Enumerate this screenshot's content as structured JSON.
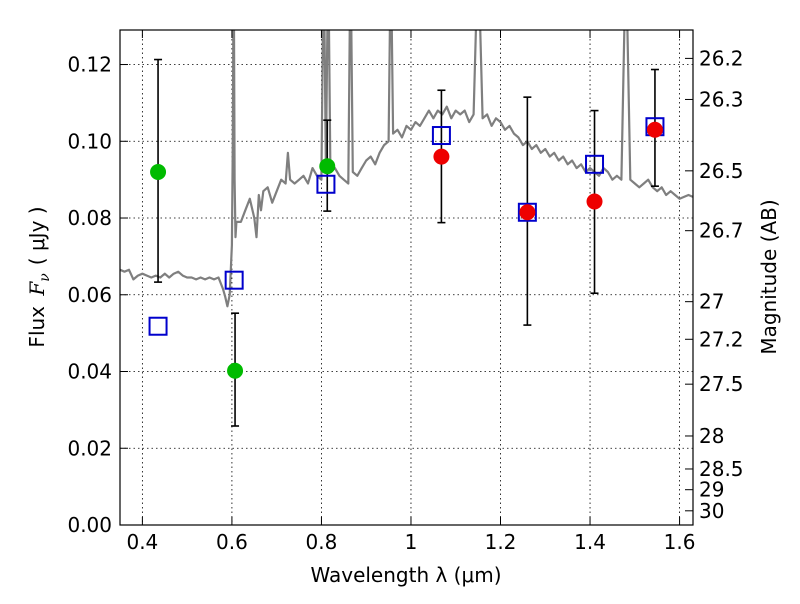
{
  "chart_data": {
    "type": "scatter",
    "xlabel": "Wavelength  λ (μm)",
    "ylabel": {
      "prefix": "Flux ",
      "symbol": "F",
      "subscript": "ν",
      "units": "( μJy )"
    },
    "y2label": "Magnitude (AB)",
    "xlim": [
      0.35,
      1.63
    ],
    "ylim": [
      0.0,
      0.129
    ],
    "x_ticks": [
      0.4,
      0.6,
      0.8,
      1.0,
      1.2,
      1.4,
      1.6
    ],
    "x_tick_labels": [
      "0.4",
      "0.6",
      "0.8",
      "1",
      "1.2",
      "1.4",
      "1.6"
    ],
    "y_ticks": [
      0.0,
      0.02,
      0.04,
      0.06,
      0.08,
      0.1,
      0.12
    ],
    "y_tick_labels": [
      "0.00",
      "0.02",
      "0.04",
      "0.06",
      "0.08",
      "0.10",
      "0.12"
    ],
    "y2_ticks": [
      {
        "label": "26.2",
        "flux": 0.1216
      },
      {
        "label": "26.3",
        "flux": 0.1109
      },
      {
        "label": "26.5",
        "flux": 0.0923
      },
      {
        "label": "26.7",
        "flux": 0.0767
      },
      {
        "label": "27",
        "flux": 0.0582
      },
      {
        "label": "27.2",
        "flux": 0.0484
      },
      {
        "label": "27.5",
        "flux": 0.0367
      },
      {
        "label": "28",
        "flux": 0.0232
      },
      {
        "label": "28.5",
        "flux": 0.0146
      },
      {
        "label": "29",
        "flux": 0.0092
      },
      {
        "label": "30",
        "flux": 0.0037
      }
    ],
    "grid": true,
    "grid_style": "dotted",
    "colors": {
      "model": "#7f7f7f",
      "green": "#00bb00",
      "red": "#ee0000",
      "blue": "#0000cc",
      "error": "#000000"
    },
    "model_spectrum": {
      "x": [
        0.35,
        0.36,
        0.37,
        0.38,
        0.39,
        0.4,
        0.41,
        0.42,
        0.43,
        0.44,
        0.45,
        0.46,
        0.47,
        0.48,
        0.49,
        0.5,
        0.51,
        0.52,
        0.53,
        0.54,
        0.55,
        0.56,
        0.57,
        0.58,
        0.585,
        0.59,
        0.595,
        0.6,
        0.602,
        0.604,
        0.606,
        0.608,
        0.61,
        0.62,
        0.63,
        0.64,
        0.65,
        0.655,
        0.66,
        0.665,
        0.67,
        0.68,
        0.69,
        0.7,
        0.71,
        0.72,
        0.725,
        0.73,
        0.74,
        0.75,
        0.76,
        0.77,
        0.78,
        0.79,
        0.8,
        0.805,
        0.81,
        0.815,
        0.82,
        0.83,
        0.84,
        0.85,
        0.86,
        0.865,
        0.87,
        0.88,
        0.89,
        0.9,
        0.91,
        0.92,
        0.93,
        0.94,
        0.95,
        0.955,
        0.96,
        0.97,
        0.98,
        0.99,
        1.0,
        1.01,
        1.02,
        1.03,
        1.04,
        1.05,
        1.06,
        1.07,
        1.08,
        1.09,
        1.1,
        1.11,
        1.12,
        1.13,
        1.14,
        1.15,
        1.16,
        1.17,
        1.18,
        1.19,
        1.2,
        1.21,
        1.22,
        1.23,
        1.24,
        1.25,
        1.26,
        1.27,
        1.28,
        1.29,
        1.3,
        1.31,
        1.32,
        1.33,
        1.34,
        1.35,
        1.36,
        1.37,
        1.38,
        1.39,
        1.4,
        1.41,
        1.42,
        1.43,
        1.44,
        1.45,
        1.46,
        1.47,
        1.48,
        1.49,
        1.5,
        1.51,
        1.52,
        1.53,
        1.54,
        1.55,
        1.56,
        1.57,
        1.58,
        1.59,
        1.6,
        1.61,
        1.62,
        1.63
      ],
      "y": [
        0.0665,
        0.066,
        0.0665,
        0.064,
        0.065,
        0.0655,
        0.065,
        0.0645,
        0.065,
        0.0645,
        0.0655,
        0.0645,
        0.0655,
        0.066,
        0.065,
        0.0645,
        0.0645,
        0.064,
        0.0645,
        0.064,
        0.0645,
        0.064,
        0.0645,
        0.0615,
        0.0595,
        0.057,
        0.06,
        0.073,
        0.1,
        0.15,
        0.09,
        0.075,
        0.079,
        0.079,
        0.082,
        0.085,
        0.08,
        0.075,
        0.086,
        0.082,
        0.087,
        0.088,
        0.084,
        0.087,
        0.09,
        0.089,
        0.097,
        0.09,
        0.089,
        0.09,
        0.091,
        0.089,
        0.093,
        0.091,
        0.09,
        0.15,
        0.093,
        0.15,
        0.092,
        0.093,
        0.091,
        0.09,
        0.089,
        0.15,
        0.092,
        0.091,
        0.093,
        0.095,
        0.096,
        0.094,
        0.097,
        0.099,
        0.1,
        0.15,
        0.102,
        0.103,
        0.101,
        0.104,
        0.103,
        0.105,
        0.104,
        0.106,
        0.108,
        0.106,
        0.108,
        0.107,
        0.109,
        0.106,
        0.108,
        0.107,
        0.108,
        0.105,
        0.107,
        0.15,
        0.106,
        0.107,
        0.104,
        0.106,
        0.105,
        0.103,
        0.104,
        0.102,
        0.101,
        0.099,
        0.1,
        0.098,
        0.099,
        0.097,
        0.098,
        0.096,
        0.097,
        0.095,
        0.096,
        0.094,
        0.095,
        0.093,
        0.094,
        0.092,
        0.093,
        0.092,
        0.091,
        0.093,
        0.092,
        0.09,
        0.091,
        0.09,
        0.15,
        0.09,
        0.089,
        0.088,
        0.089,
        0.09,
        0.088,
        0.087,
        0.088,
        0.086,
        0.087,
        0.086,
        0.085,
        0.0855,
        0.086,
        0.0855
      ]
    },
    "green_points": [
      {
        "x": 0.435,
        "y": 0.092
      },
      {
        "x": 0.607,
        "y": 0.0402
      },
      {
        "x": 0.813,
        "y": 0.0935
      }
    ],
    "red_points": [
      {
        "x": 1.068,
        "y": 0.096
      },
      {
        "x": 1.26,
        "y": 0.0815
      },
      {
        "x": 1.41,
        "y": 0.0843
      },
      {
        "x": 1.545,
        "y": 0.103
      }
    ],
    "blue_squares": [
      {
        "x": 0.435,
        "y": 0.0518
      },
      {
        "x": 0.605,
        "y": 0.0638
      },
      {
        "x": 0.81,
        "y": 0.0888
      },
      {
        "x": 1.068,
        "y": 0.1015
      },
      {
        "x": 1.26,
        "y": 0.0815
      },
      {
        "x": 1.41,
        "y": 0.094
      },
      {
        "x": 1.545,
        "y": 0.1038
      }
    ],
    "error_bars": [
      {
        "x": 0.435,
        "low": 0.0633,
        "high": 0.1213
      },
      {
        "x": 0.607,
        "low": 0.0258,
        "high": 0.0552
      },
      {
        "x": 0.813,
        "low": 0.0818,
        "high": 0.1055
      },
      {
        "x": 1.068,
        "low": 0.0788,
        "high": 0.1133
      },
      {
        "x": 1.26,
        "low": 0.0521,
        "high": 0.1115
      },
      {
        "x": 1.41,
        "low": 0.0604,
        "high": 0.108
      },
      {
        "x": 1.545,
        "low": 0.0883,
        "high": 0.1187
      }
    ]
  }
}
